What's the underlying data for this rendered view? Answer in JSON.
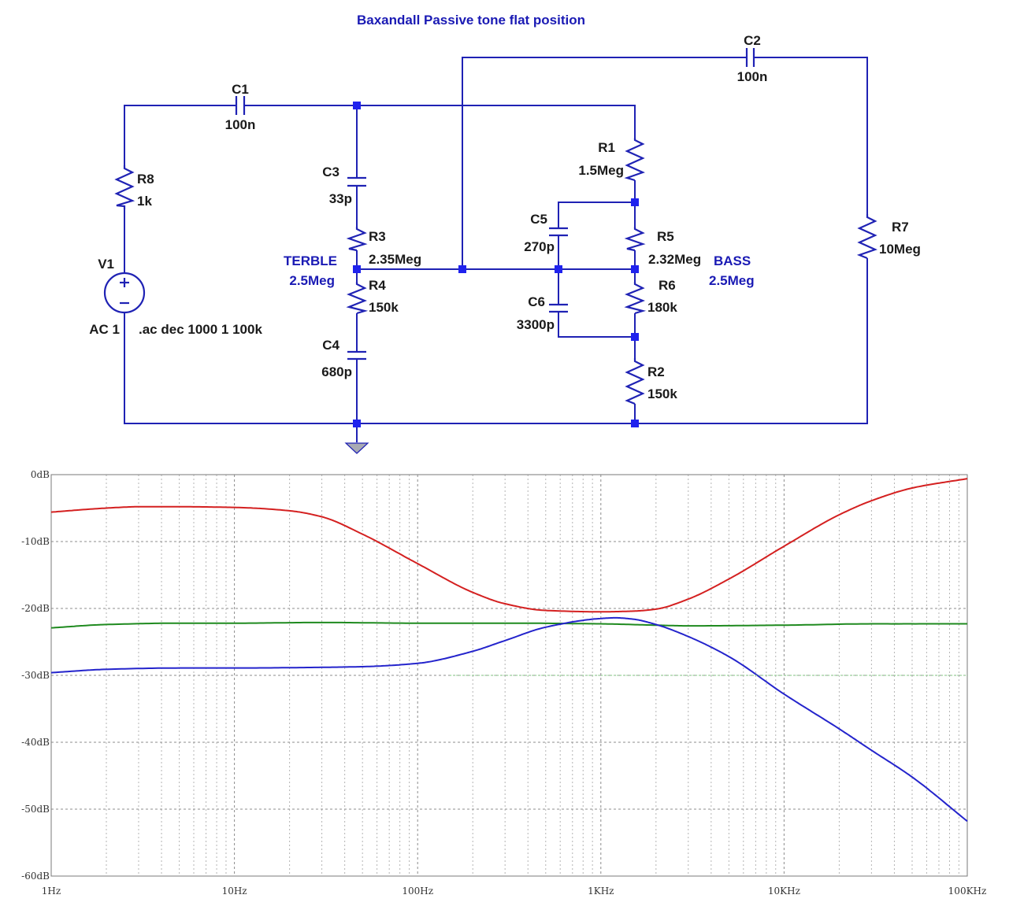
{
  "title": "Baxandall Passive tone flat position",
  "directive": ".ac dec 1000 1 100k",
  "source": {
    "name": "V1",
    "value": "AC 1"
  },
  "components": {
    "C1": {
      "name": "C1",
      "value": "100n"
    },
    "C2": {
      "name": "C2",
      "value": "100n"
    },
    "C3": {
      "name": "C3",
      "value": "33p"
    },
    "C4": {
      "name": "C4",
      "value": "680p"
    },
    "C5": {
      "name": "C5",
      "value": "270p"
    },
    "C6": {
      "name": "C6",
      "value": "3300p"
    },
    "R1": {
      "name": "R1",
      "value": "1.5Meg"
    },
    "R2": {
      "name": "R2",
      "value": "150k"
    },
    "R3": {
      "name": "R3",
      "value": "2.35Meg"
    },
    "R4": {
      "name": "R4",
      "value": "150k"
    },
    "R5": {
      "name": "R5",
      "value": "2.32Meg"
    },
    "R6": {
      "name": "R6",
      "value": "180k"
    },
    "R7": {
      "name": "R7",
      "value": "10Meg"
    },
    "R8": {
      "name": "R8",
      "value": "1k"
    }
  },
  "pots": {
    "treble": {
      "name": "TERBLE",
      "value": "2.5Meg"
    },
    "bass": {
      "name": "BASS",
      "value": "2.5Meg"
    }
  },
  "colors": {
    "wire": "#1f22b4",
    "red_trace": "#d42020",
    "green_trace": "#1f8a1f",
    "blue_trace": "#2424cc"
  },
  "chart_data": {
    "type": "line",
    "x_scale": "log",
    "xlim": [
      "1Hz",
      "100KHz"
    ],
    "ylim": [
      -60,
      0
    ],
    "grid": true,
    "x_ticks": [
      "1Hz",
      "10Hz",
      "100Hz",
      "1KHz",
      "10KHz",
      "100KHz"
    ],
    "y_ticks": [
      "0dB",
      "-10dB",
      "-20dB",
      "-30dB",
      "-40dB",
      "-50dB",
      "-60dB"
    ],
    "series": [
      {
        "color": "red",
        "x": [
          "1Hz",
          "2Hz",
          "3Hz",
          "5Hz",
          "10Hz",
          "20Hz",
          "30Hz",
          "50Hz",
          "100Hz",
          "200Hz",
          "300Hz",
          "500Hz",
          "1KHz",
          "1.5KHz",
          "2KHz",
          "3KHz",
          "5KHz",
          "10KHz",
          "20KHz",
          "30KHz",
          "50KHz",
          "100KHz"
        ],
        "y": [
          -5.6,
          -5.0,
          -4.8,
          -4.8,
          -4.9,
          -5.4,
          -6.3,
          -8.9,
          -13.3,
          -17.6,
          -19.3,
          -20.3,
          -20.5,
          -20.4,
          -20.1,
          -18.6,
          -15.6,
          -10.7,
          -6.0,
          -3.9,
          -2.0,
          -0.6
        ]
      },
      {
        "color": "green",
        "x": [
          "1Hz",
          "2Hz",
          "5Hz",
          "10Hz",
          "30Hz",
          "100Hz",
          "300Hz",
          "1KHz",
          "2KHz",
          "3KHz",
          "10KHz",
          "30KHz",
          "100KHz"
        ],
        "y": [
          -22.9,
          -22.4,
          -22.2,
          -22.2,
          -22.1,
          -22.2,
          -22.2,
          -22.3,
          -22.5,
          -22.6,
          -22.5,
          -22.3,
          -22.3
        ]
      },
      {
        "color": "blue",
        "x": [
          "1Hz",
          "2Hz",
          "5Hz",
          "10Hz",
          "30Hz",
          "50Hz",
          "100Hz",
          "200Hz",
          "300Hz",
          "500Hz",
          "1KHz",
          "1.2KHz",
          "1.5KHz",
          "2KHz",
          "3KHz",
          "5KHz",
          "10KHz",
          "20KHz",
          "30KHz",
          "50KHz",
          "100KHz"
        ],
        "y": [
          -29.6,
          -29.1,
          -28.9,
          -28.9,
          -28.8,
          -28.7,
          -28.2,
          -26.4,
          -24.8,
          -22.8,
          -21.5,
          -21.4,
          -21.6,
          -22.4,
          -24.2,
          -27.2,
          -32.8,
          -38.0,
          -41.2,
          -45.2,
          -51.8
        ]
      }
    ]
  }
}
